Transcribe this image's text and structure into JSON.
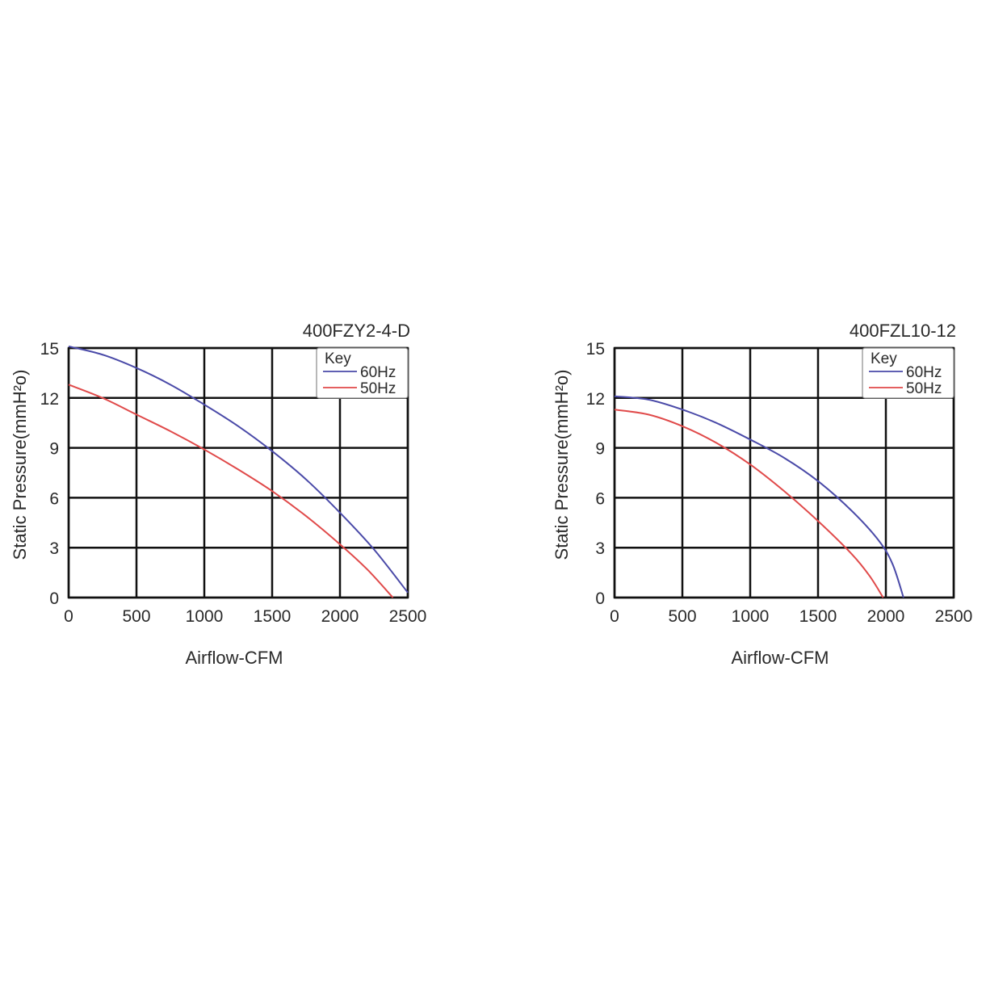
{
  "colors": {
    "series_60hz": "#4a4aa8",
    "series_50hz": "#e04a4a",
    "grid": "#111111",
    "legend_border": "#8a8a8a"
  },
  "chart_data": [
    {
      "type": "line",
      "title": "400FZY2-4-D",
      "xlabel": "Airflow-CFM",
      "ylabel": "Static Pressure(mmH²o)",
      "xlim": [
        0,
        2500
      ],
      "ylim": [
        0,
        15
      ],
      "xticks": [
        0,
        500,
        1000,
        1500,
        2000,
        2500
      ],
      "yticks": [
        0,
        3,
        6,
        9,
        12,
        15
      ],
      "grid": true,
      "legend": {
        "title": "Key",
        "placement": "top-right",
        "entries": [
          "60Hz",
          "50Hz"
        ]
      },
      "series": [
        {
          "name": "60Hz",
          "color": "#4a4aa8",
          "x": [
            0,
            250,
            500,
            750,
            1000,
            1250,
            1500,
            1750,
            2000,
            2250,
            2500
          ],
          "y": [
            15.1,
            14.6,
            13.8,
            12.8,
            11.6,
            10.3,
            8.8,
            7.1,
            5.1,
            2.9,
            0.3
          ]
        },
        {
          "name": "50Hz",
          "color": "#e04a4a",
          "x": [
            0,
            250,
            500,
            750,
            1000,
            1250,
            1500,
            1750,
            2000,
            2200,
            2390
          ],
          "y": [
            12.8,
            12.0,
            11.0,
            10.0,
            8.9,
            7.7,
            6.4,
            4.9,
            3.2,
            1.7,
            0
          ]
        }
      ]
    },
    {
      "type": "line",
      "title": "400FZL10-12",
      "xlabel": "Airflow-CFM",
      "ylabel": "Static Pressure(mmH²o)",
      "xlim": [
        0,
        2500
      ],
      "ylim": [
        0,
        15
      ],
      "xticks": [
        0,
        500,
        1000,
        1500,
        2000,
        2500
      ],
      "yticks": [
        0,
        3,
        6,
        9,
        12,
        15
      ],
      "grid": true,
      "legend": {
        "title": "Key",
        "placement": "top-right",
        "entries": [
          "60Hz",
          "50Hz"
        ]
      },
      "series": [
        {
          "name": "60Hz",
          "color": "#4a4aa8",
          "x": [
            0,
            250,
            500,
            750,
            1000,
            1250,
            1500,
            1750,
            1950,
            2050,
            2130
          ],
          "y": [
            12.1,
            11.9,
            11.3,
            10.5,
            9.5,
            8.4,
            7.0,
            5.2,
            3.4,
            2.0,
            0
          ]
        },
        {
          "name": "50Hz",
          "color": "#e04a4a",
          "x": [
            0,
            250,
            500,
            750,
            1000,
            1250,
            1500,
            1750,
            1880,
            1980
          ],
          "y": [
            11.3,
            11.0,
            10.3,
            9.3,
            8.0,
            6.4,
            4.6,
            2.6,
            1.3,
            0
          ]
        }
      ]
    }
  ]
}
